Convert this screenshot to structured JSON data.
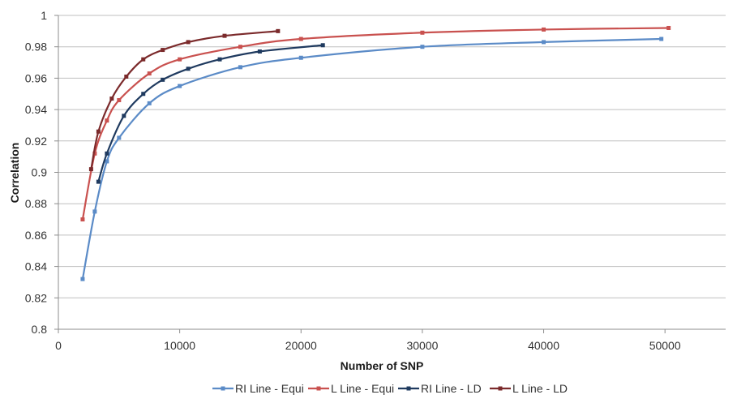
{
  "chart_data": {
    "type": "line",
    "title": "",
    "xlabel": "Number of SNP",
    "ylabel": "Correlation",
    "xlim": [
      0,
      55000
    ],
    "ylim": [
      0.8,
      1.0
    ],
    "x_ticks": [
      0,
      10000,
      20000,
      30000,
      40000,
      50000
    ],
    "y_ticks": [
      0.8,
      0.82,
      0.84,
      0.86,
      0.88,
      0.9,
      0.92,
      0.94,
      0.96,
      0.98,
      1
    ],
    "x_tick_labels": [
      "0",
      "10000",
      "20000",
      "30000",
      "40000",
      "50000"
    ],
    "y_tick_labels": [
      "0.8",
      "0.82",
      "0.84",
      "0.86",
      "0.88",
      "0.9",
      "0.92",
      "0.94",
      "0.96",
      "0.98",
      "1"
    ],
    "grid": "horizontal",
    "legend_position": "bottom",
    "series": [
      {
        "name": "RI Line - Equi",
        "color": "#5b8bc7",
        "x": [
          2000,
          3000,
          4000,
          5000,
          7500,
          10000,
          15000,
          20000,
          30000,
          40000,
          49700
        ],
        "y": [
          0.832,
          0.875,
          0.907,
          0.922,
          0.944,
          0.955,
          0.967,
          0.973,
          0.98,
          0.983,
          0.985
        ]
      },
      {
        "name": "L Line - Equi",
        "color": "#c9514f",
        "x": [
          2000,
          3000,
          4000,
          5000,
          7500,
          10000,
          15000,
          20000,
          30000,
          40000,
          50300
        ],
        "y": [
          0.87,
          0.912,
          0.933,
          0.946,
          0.963,
          0.972,
          0.98,
          0.985,
          0.989,
          0.991,
          0.992
        ]
      },
      {
        "name": "RI Line - LD",
        "color": "#1f3a5f",
        "x": [
          3300,
          4000,
          5400,
          7000,
          8600,
          10700,
          13300,
          16600,
          21800
        ],
        "y": [
          0.894,
          0.912,
          0.936,
          0.95,
          0.959,
          0.966,
          0.972,
          0.977,
          0.981
        ]
      },
      {
        "name": "L Line - LD",
        "color": "#7b2a2b",
        "x": [
          2700,
          3300,
          4400,
          5600,
          7000,
          8600,
          10700,
          13700,
          18100
        ],
        "y": [
          0.902,
          0.926,
          0.947,
          0.961,
          0.972,
          0.978,
          0.983,
          0.987,
          0.99
        ]
      }
    ]
  }
}
